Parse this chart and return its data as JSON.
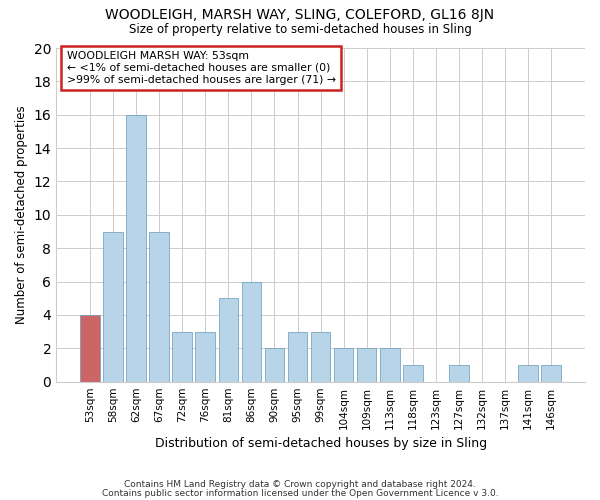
{
  "title": "WOODLEIGH, MARSH WAY, SLING, COLEFORD, GL16 8JN",
  "subtitle": "Size of property relative to semi-detached houses in Sling",
  "xlabel": "Distribution of semi-detached houses by size in Sling",
  "ylabel": "Number of semi-detached properties",
  "bar_color": "#b8d4e8",
  "highlight_color": "#cc6666",
  "categories": [
    "53sqm",
    "58sqm",
    "62sqm",
    "67sqm",
    "72sqm",
    "76sqm",
    "81sqm",
    "86sqm",
    "90sqm",
    "95sqm",
    "99sqm",
    "104sqm",
    "109sqm",
    "113sqm",
    "118sqm",
    "123sqm",
    "127sqm",
    "132sqm",
    "137sqm",
    "141sqm",
    "146sqm"
  ],
  "values": [
    4,
    9,
    16,
    9,
    3,
    3,
    5,
    6,
    2,
    3,
    3,
    2,
    2,
    2,
    1,
    0,
    1,
    0,
    0,
    1,
    1
  ],
  "highlight_index": 0,
  "ylim": [
    0,
    20
  ],
  "yticks": [
    0,
    2,
    4,
    6,
    8,
    10,
    12,
    14,
    16,
    18,
    20
  ],
  "annotation_title": "WOODLEIGH MARSH WAY: 53sqm",
  "annotation_line1": "← <1% of semi-detached houses are smaller (0)",
  "annotation_line2": ">99% of semi-detached houses are larger (71) →",
  "footer1": "Contains HM Land Registry data © Crown copyright and database right 2024.",
  "footer2": "Contains public sector information licensed under the Open Government Licence v 3.0.",
  "background_color": "#ffffff",
  "grid_color": "#cccccc"
}
